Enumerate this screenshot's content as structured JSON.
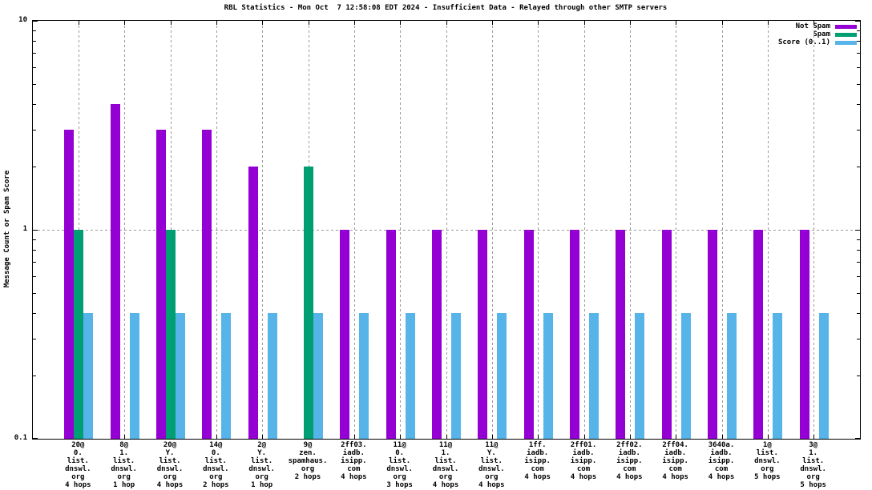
{
  "window": {
    "title": "RBL Statistics - Mon Oct  7 12:58:08 EDT 2024 - Insufficient Data - Relayed through other SMTP servers"
  },
  "chart_data": {
    "type": "bar",
    "title": "RBL Statistics - Mon Oct  7 12:58:08 EDT 2024 - Insufficient Data - Relayed through other SMTP servers",
    "ylabel": "Message Count or Spam Score",
    "xlabel": "",
    "yscale": "log",
    "ylim": [
      0.1,
      10
    ],
    "ymajor_ticks": [
      0.1,
      1,
      10
    ],
    "ytick_labels": [
      "0.1",
      "1",
      "10"
    ],
    "grid": {
      "horizontal_dotted_at": 1,
      "vertical_dotted": "every category center",
      "color": "#9a9a9a"
    },
    "legend_position": "top-right-inside",
    "legend": [
      {
        "name": "Not Spam",
        "color": "#9400D3"
      },
      {
        "name": "Spam",
        "color": "#009E73"
      },
      {
        "name": "Score (0..1)",
        "color": "#56B4E9"
      }
    ],
    "categories": [
      [
        "20@",
        "0.",
        "list.",
        "dnswl.",
        "org",
        "4 hops"
      ],
      [
        "8@",
        "1.",
        "list.",
        "dnswl.",
        "org",
        "1 hop"
      ],
      [
        "20@",
        "Y.",
        "list.",
        "dnswl.",
        "org",
        "4 hops"
      ],
      [
        "14@",
        "0.",
        "list.",
        "dnswl.",
        "org",
        "2 hops"
      ],
      [
        "2@",
        "Y.",
        "list.",
        "dnswl.",
        "org",
        "1 hop"
      ],
      [
        "9@",
        "zen.",
        "spamhaus.",
        "org",
        "2 hops"
      ],
      [
        "2ff03.",
        "iadb.",
        "isipp.",
        "com",
        "4 hops"
      ],
      [
        "11@",
        "0.",
        "list.",
        "dnswl.",
        "org",
        "3 hops"
      ],
      [
        "11@",
        "1.",
        "list.",
        "dnswl.",
        "org",
        "4 hops"
      ],
      [
        "11@",
        "Y.",
        "list.",
        "dnswl.",
        "org",
        "4 hops"
      ],
      [
        "1ff.",
        "iadb.",
        "isipp.",
        "com",
        "4 hops"
      ],
      [
        "2ff01.",
        "iadb.",
        "isipp.",
        "com",
        "4 hops"
      ],
      [
        "2ff02.",
        "iadb.",
        "isipp.",
        "com",
        "4 hops"
      ],
      [
        "2ff04.",
        "iadb.",
        "isipp.",
        "com",
        "4 hops"
      ],
      [
        "3640a.",
        "iadb.",
        "isipp.",
        "com",
        "4 hops"
      ],
      [
        "1@",
        "list.",
        "dnswl.",
        "org",
        "5 hops"
      ],
      [
        "3@",
        "1.",
        "list.",
        "dnswl.",
        "org",
        "5 hops"
      ]
    ],
    "series": [
      {
        "name": "Not Spam",
        "color": "#9400D3",
        "values": [
          3,
          4,
          3,
          3,
          2,
          null,
          1,
          1,
          1,
          1,
          1,
          1,
          1,
          1,
          1,
          1,
          1
        ]
      },
      {
        "name": "Spam",
        "color": "#009E73",
        "values": [
          1,
          null,
          1,
          null,
          null,
          2,
          null,
          null,
          null,
          null,
          null,
          null,
          null,
          null,
          null,
          null,
          null
        ]
      },
      {
        "name": "Score (0..1)",
        "color": "#56B4E9",
        "values": [
          0.4,
          0.4,
          0.4,
          0.4,
          0.4,
          0.4,
          0.4,
          0.4,
          0.4,
          0.4,
          0.4,
          0.4,
          0.4,
          0.4,
          0.4,
          0.4,
          0.4
        ]
      }
    ]
  }
}
